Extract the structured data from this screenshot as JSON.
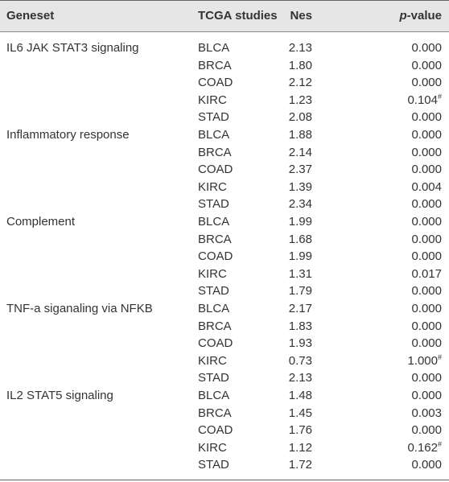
{
  "table": {
    "header": [
      "Geneset",
      "TCGA studies",
      "Nes",
      "p-value"
    ],
    "groups": [
      {
        "name": "IL6 JAK STAT3 signaling",
        "rows": [
          {
            "study": "BLCA",
            "nes": "2.13",
            "p": "0.000"
          },
          {
            "study": "BRCA",
            "nes": "1.80",
            "p": "0.000"
          },
          {
            "study": "COAD",
            "nes": "2.12",
            "p": "0.000"
          },
          {
            "study": "KIRC",
            "nes": "1.23",
            "p": "0.104",
            "sup": "#"
          },
          {
            "study": "STAD",
            "nes": "2.08",
            "p": "0.000"
          }
        ]
      },
      {
        "name": "Inflammatory response",
        "rows": [
          {
            "study": "BLCA",
            "nes": "1.88",
            "p": "0.000"
          },
          {
            "study": "BRCA",
            "nes": "2.14",
            "p": "0.000"
          },
          {
            "study": "COAD",
            "nes": "2.37",
            "p": "0.000"
          },
          {
            "study": "KIRC",
            "nes": "1.39",
            "p": "0.004"
          },
          {
            "study": "STAD",
            "nes": "2.34",
            "p": "0.000"
          }
        ]
      },
      {
        "name": "Complement",
        "rows": [
          {
            "study": "BLCA",
            "nes": "1.99",
            "p": "0.000"
          },
          {
            "study": "BRCA",
            "nes": "1.68",
            "p": "0.000"
          },
          {
            "study": "COAD",
            "nes": "1.99",
            "p": "0.000"
          },
          {
            "study": "KIRC",
            "nes": "1.31",
            "p": "0.017"
          },
          {
            "study": "STAD",
            "nes": "1.79",
            "p": "0.000"
          }
        ]
      },
      {
        "name": "TNF-a siganaling via NFKB",
        "rows": [
          {
            "study": "BLCA",
            "nes": "2.17",
            "p": "0.000"
          },
          {
            "study": "BRCA",
            "nes": "1.83",
            "p": "0.000"
          },
          {
            "study": "COAD",
            "nes": "1.93",
            "p": "0.000"
          },
          {
            "study": "KIRC",
            "nes": "0.73",
            "p": "1.000",
            "sup": "#"
          },
          {
            "study": "STAD",
            "nes": "2.13",
            "p": "0.000"
          }
        ]
      },
      {
        "name": "IL2 STAT5 signaling",
        "rows": [
          {
            "study": "BLCA",
            "nes": "1.48",
            "p": "0.000"
          },
          {
            "study": "BRCA",
            "nes": "1.45",
            "p": "0.003"
          },
          {
            "study": "COAD",
            "nes": "1.76",
            "p": "0.000"
          },
          {
            "study": "KIRC",
            "nes": "1.12",
            "p": "0.162",
            "sup": "#"
          },
          {
            "study": "STAD",
            "nes": "1.72",
            "p": "0.000"
          }
        ]
      }
    ]
  }
}
